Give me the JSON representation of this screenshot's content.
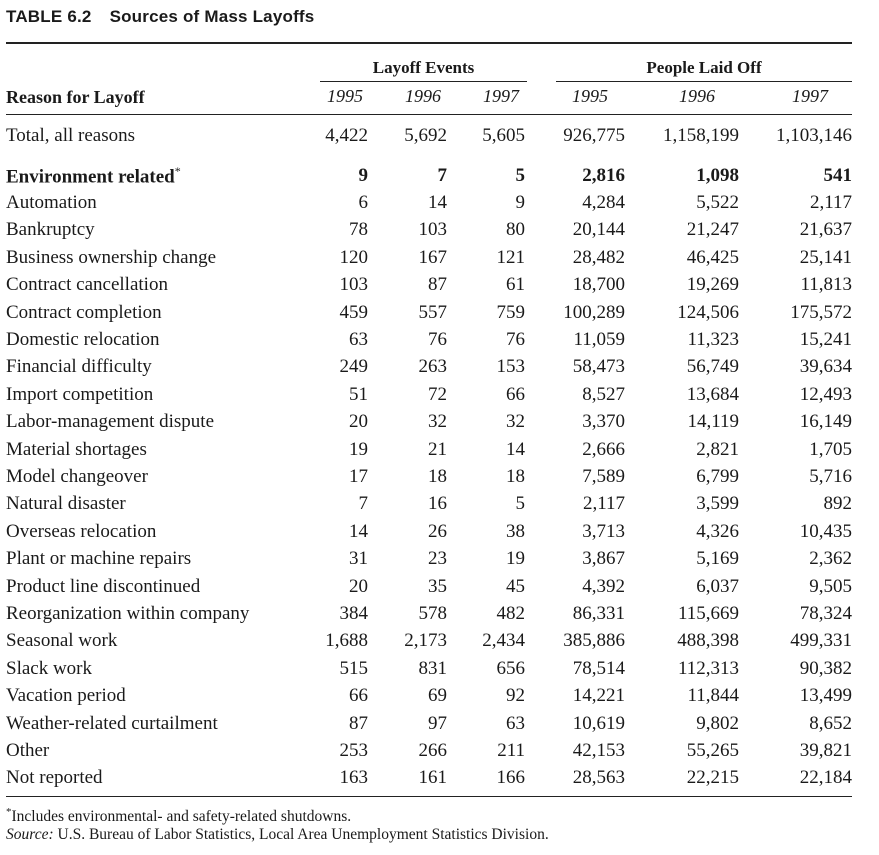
{
  "table": {
    "number": "TABLE 6.2",
    "title": "Sources of Mass Layoffs",
    "reason_header": "Reason for Layoff",
    "group_events": "Layoff Events",
    "group_people": "People Laid Off",
    "years": [
      "1995",
      "1996",
      "1997",
      "1995",
      "1996",
      "1997"
    ],
    "total": {
      "label": "Total, all reasons",
      "values": [
        "4,422",
        "5,692",
        "5,605",
        "926,775",
        "1,158,199",
        "1,103,146"
      ]
    },
    "rows": [
      {
        "label": "Environment related",
        "mark": "*",
        "values": [
          "9",
          "7",
          "5",
          "2,816",
          "1,098",
          "541"
        ]
      },
      {
        "label": "Automation",
        "values": [
          "6",
          "14",
          "9",
          "4,284",
          "5,522",
          "2,117"
        ]
      },
      {
        "label": "Bankruptcy",
        "values": [
          "78",
          "103",
          "80",
          "20,144",
          "21,247",
          "21,637"
        ]
      },
      {
        "label": "Business ownership change",
        "values": [
          "120",
          "167",
          "121",
          "28,482",
          "46,425",
          "25,141"
        ]
      },
      {
        "label": "Contract cancellation",
        "values": [
          "103",
          "87",
          "61",
          "18,700",
          "19,269",
          "11,813"
        ]
      },
      {
        "label": "Contract completion",
        "values": [
          "459",
          "557",
          "759",
          "100,289",
          "124,506",
          "175,572"
        ]
      },
      {
        "label": "Domestic relocation",
        "values": [
          "63",
          "76",
          "76",
          "11,059",
          "11,323",
          "15,241"
        ]
      },
      {
        "label": "Financial difficulty",
        "values": [
          "249",
          "263",
          "153",
          "58,473",
          "56,749",
          "39,634"
        ]
      },
      {
        "label": "Import competition",
        "values": [
          "51",
          "72",
          "66",
          "8,527",
          "13,684",
          "12,493"
        ]
      },
      {
        "label": "Labor-management dispute",
        "values": [
          "20",
          "32",
          "32",
          "3,370",
          "14,119",
          "16,149"
        ]
      },
      {
        "label": "Material shortages",
        "values": [
          "19",
          "21",
          "14",
          "2,666",
          "2,821",
          "1,705"
        ]
      },
      {
        "label": "Model changeover",
        "values": [
          "17",
          "18",
          "18",
          "7,589",
          "6,799",
          "5,716"
        ]
      },
      {
        "label": "Natural disaster",
        "values": [
          "7",
          "16",
          "5",
          "2,117",
          "3,599",
          "892"
        ]
      },
      {
        "label": "Overseas relocation",
        "values": [
          "14",
          "26",
          "38",
          "3,713",
          "4,326",
          "10,435"
        ]
      },
      {
        "label": "Plant or machine repairs",
        "values": [
          "31",
          "23",
          "19",
          "3,867",
          "5,169",
          "2,362"
        ]
      },
      {
        "label": "Product line discontinued",
        "values": [
          "20",
          "35",
          "45",
          "4,392",
          "6,037",
          "9,505"
        ]
      },
      {
        "label": "Reorganization within company",
        "values": [
          "384",
          "578",
          "482",
          "86,331",
          "115,669",
          "78,324"
        ]
      },
      {
        "label": "Seasonal work",
        "values": [
          "1,688",
          "2,173",
          "2,434",
          "385,886",
          "488,398",
          "499,331"
        ]
      },
      {
        "label": "Slack work",
        "values": [
          "515",
          "831",
          "656",
          "78,514",
          "112,313",
          "90,382"
        ]
      },
      {
        "label": "Vacation period",
        "values": [
          "66",
          "69",
          "92",
          "14,221",
          "11,844",
          "13,499"
        ]
      },
      {
        "label": "Weather-related curtailment",
        "values": [
          "87",
          "97",
          "63",
          "10,619",
          "9,802",
          "8,652"
        ]
      },
      {
        "label": "Other",
        "values": [
          "253",
          "266",
          "211",
          "42,153",
          "55,265",
          "39,821"
        ]
      },
      {
        "label": "Not reported",
        "values": [
          "163",
          "161",
          "166",
          "28,563",
          "22,215",
          "22,184"
        ]
      }
    ]
  },
  "footnotes": {
    "note_mark": "*",
    "note_text": "Includes environmental- and safety-related shutdowns.",
    "source_label": "Source:",
    "source_text": " U.S. Bureau of Labor Statistics, Local Area Unemployment Statistics Division."
  }
}
